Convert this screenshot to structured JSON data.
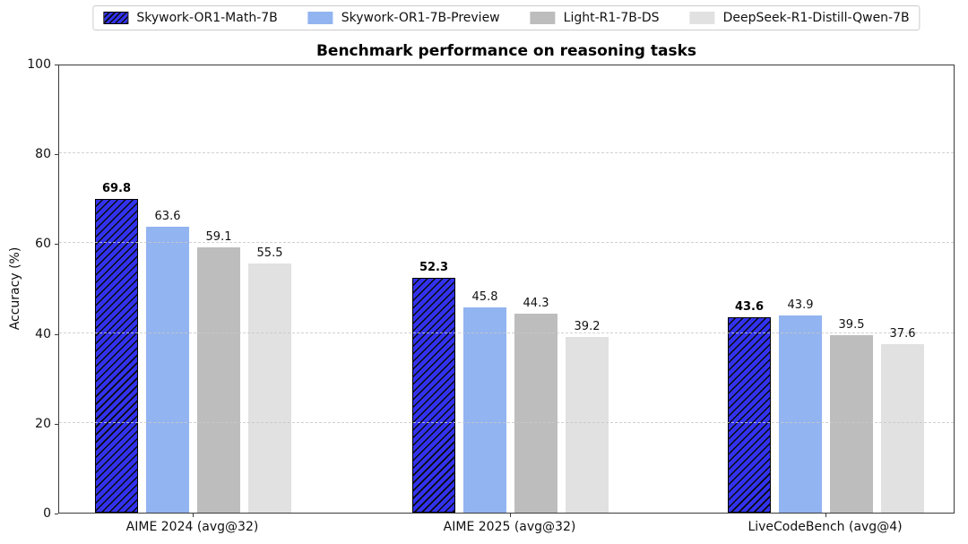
{
  "chart_data": {
    "type": "bar",
    "title": "Benchmark performance on reasoning tasks",
    "xlabel": "",
    "ylabel": "Accuracy (%)",
    "ylim": [
      0,
      100
    ],
    "yticks": [
      0,
      20,
      40,
      60,
      80,
      100
    ],
    "grid": {
      "axis": "y",
      "line_style": "dashed",
      "color": "#c9c9c9",
      "drawn_above_bars": true
    },
    "legend_position": "top-center",
    "categories": [
      "AIME 2024 (avg@32)",
      "AIME 2025 (avg@32)",
      "LiveCodeBench (avg@4)"
    ],
    "series": [
      {
        "name": "Skywork-OR1-Math-7B",
        "values": [
          69.8,
          52.3,
          43.6
        ],
        "color": "#3232ee",
        "hatch": "///",
        "hatch_color": "#0a0a0a",
        "edge_color": "#000000",
        "bold_value_labels": true
      },
      {
        "name": "Skywork-OR1-7B-Preview",
        "values": [
          63.6,
          45.8,
          43.9
        ],
        "color": "#92b4f0"
      },
      {
        "name": "Light-R1-7B-DS",
        "values": [
          59.1,
          44.3,
          39.5
        ],
        "color": "#bdbdbd"
      },
      {
        "name": "DeepSeek-R1-Distill-Qwen-7B",
        "values": [
          55.5,
          39.2,
          37.6
        ],
        "color": "#e1e1e1"
      }
    ]
  }
}
